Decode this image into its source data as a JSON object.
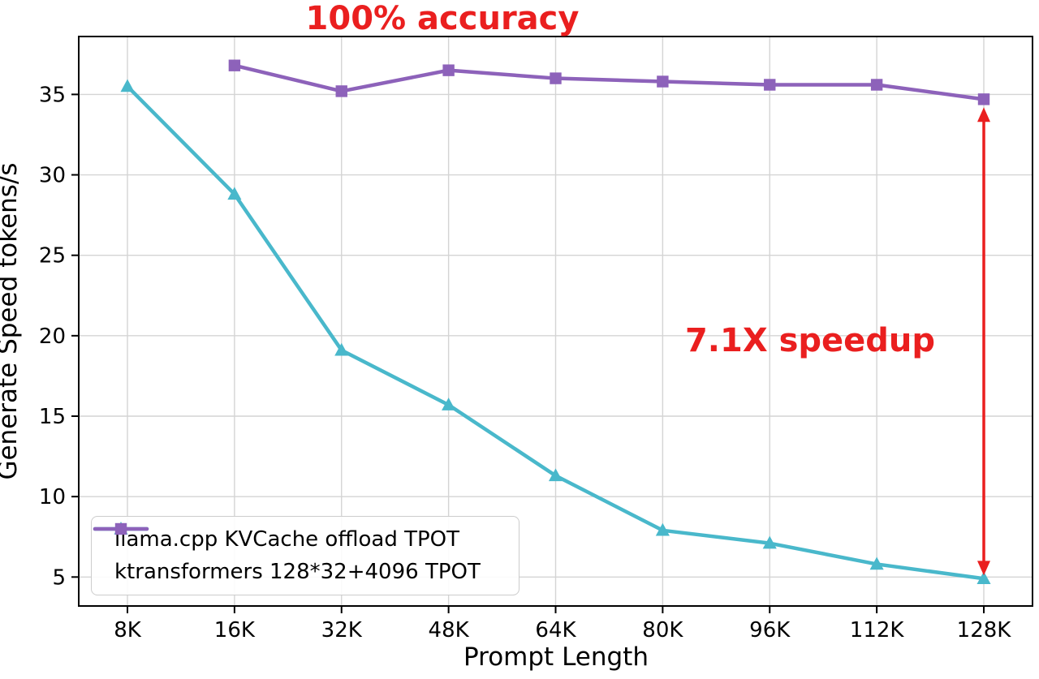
{
  "chart_data": {
    "type": "line",
    "title": "100% accuracy",
    "annotation": "7.1X speedup",
    "xlabel": "Prompt Length",
    "ylabel": "Generate Speed tokens/s",
    "categories": [
      "8K",
      "16K",
      "32K",
      "48K",
      "64K",
      "80K",
      "96K",
      "112K",
      "128K"
    ],
    "series": [
      {
        "name": "llama.cpp KVCache offload TPOT",
        "color": "#49b8cb",
        "marker": "triangle",
        "values": [
          35.5,
          28.8,
          19.1,
          15.7,
          11.3,
          7.9,
          7.1,
          5.8,
          4.9
        ]
      },
      {
        "name": "ktransformers 128*32+4096 TPOT",
        "color": "#8d62ba",
        "marker": "square",
        "values": [
          null,
          36.8,
          35.2,
          36.5,
          36.0,
          35.8,
          35.6,
          35.6,
          34.7
        ]
      }
    ],
    "yticks": [
      5,
      10,
      15,
      20,
      25,
      30,
      35
    ],
    "ylim": [
      3.2,
      38.6
    ],
    "grid": true,
    "legend_position": "lower left",
    "accent_red": "#ea1f1f",
    "arrow": {
      "x_category": "128K",
      "from_value": 34.2,
      "to_value": 5.1
    }
  }
}
